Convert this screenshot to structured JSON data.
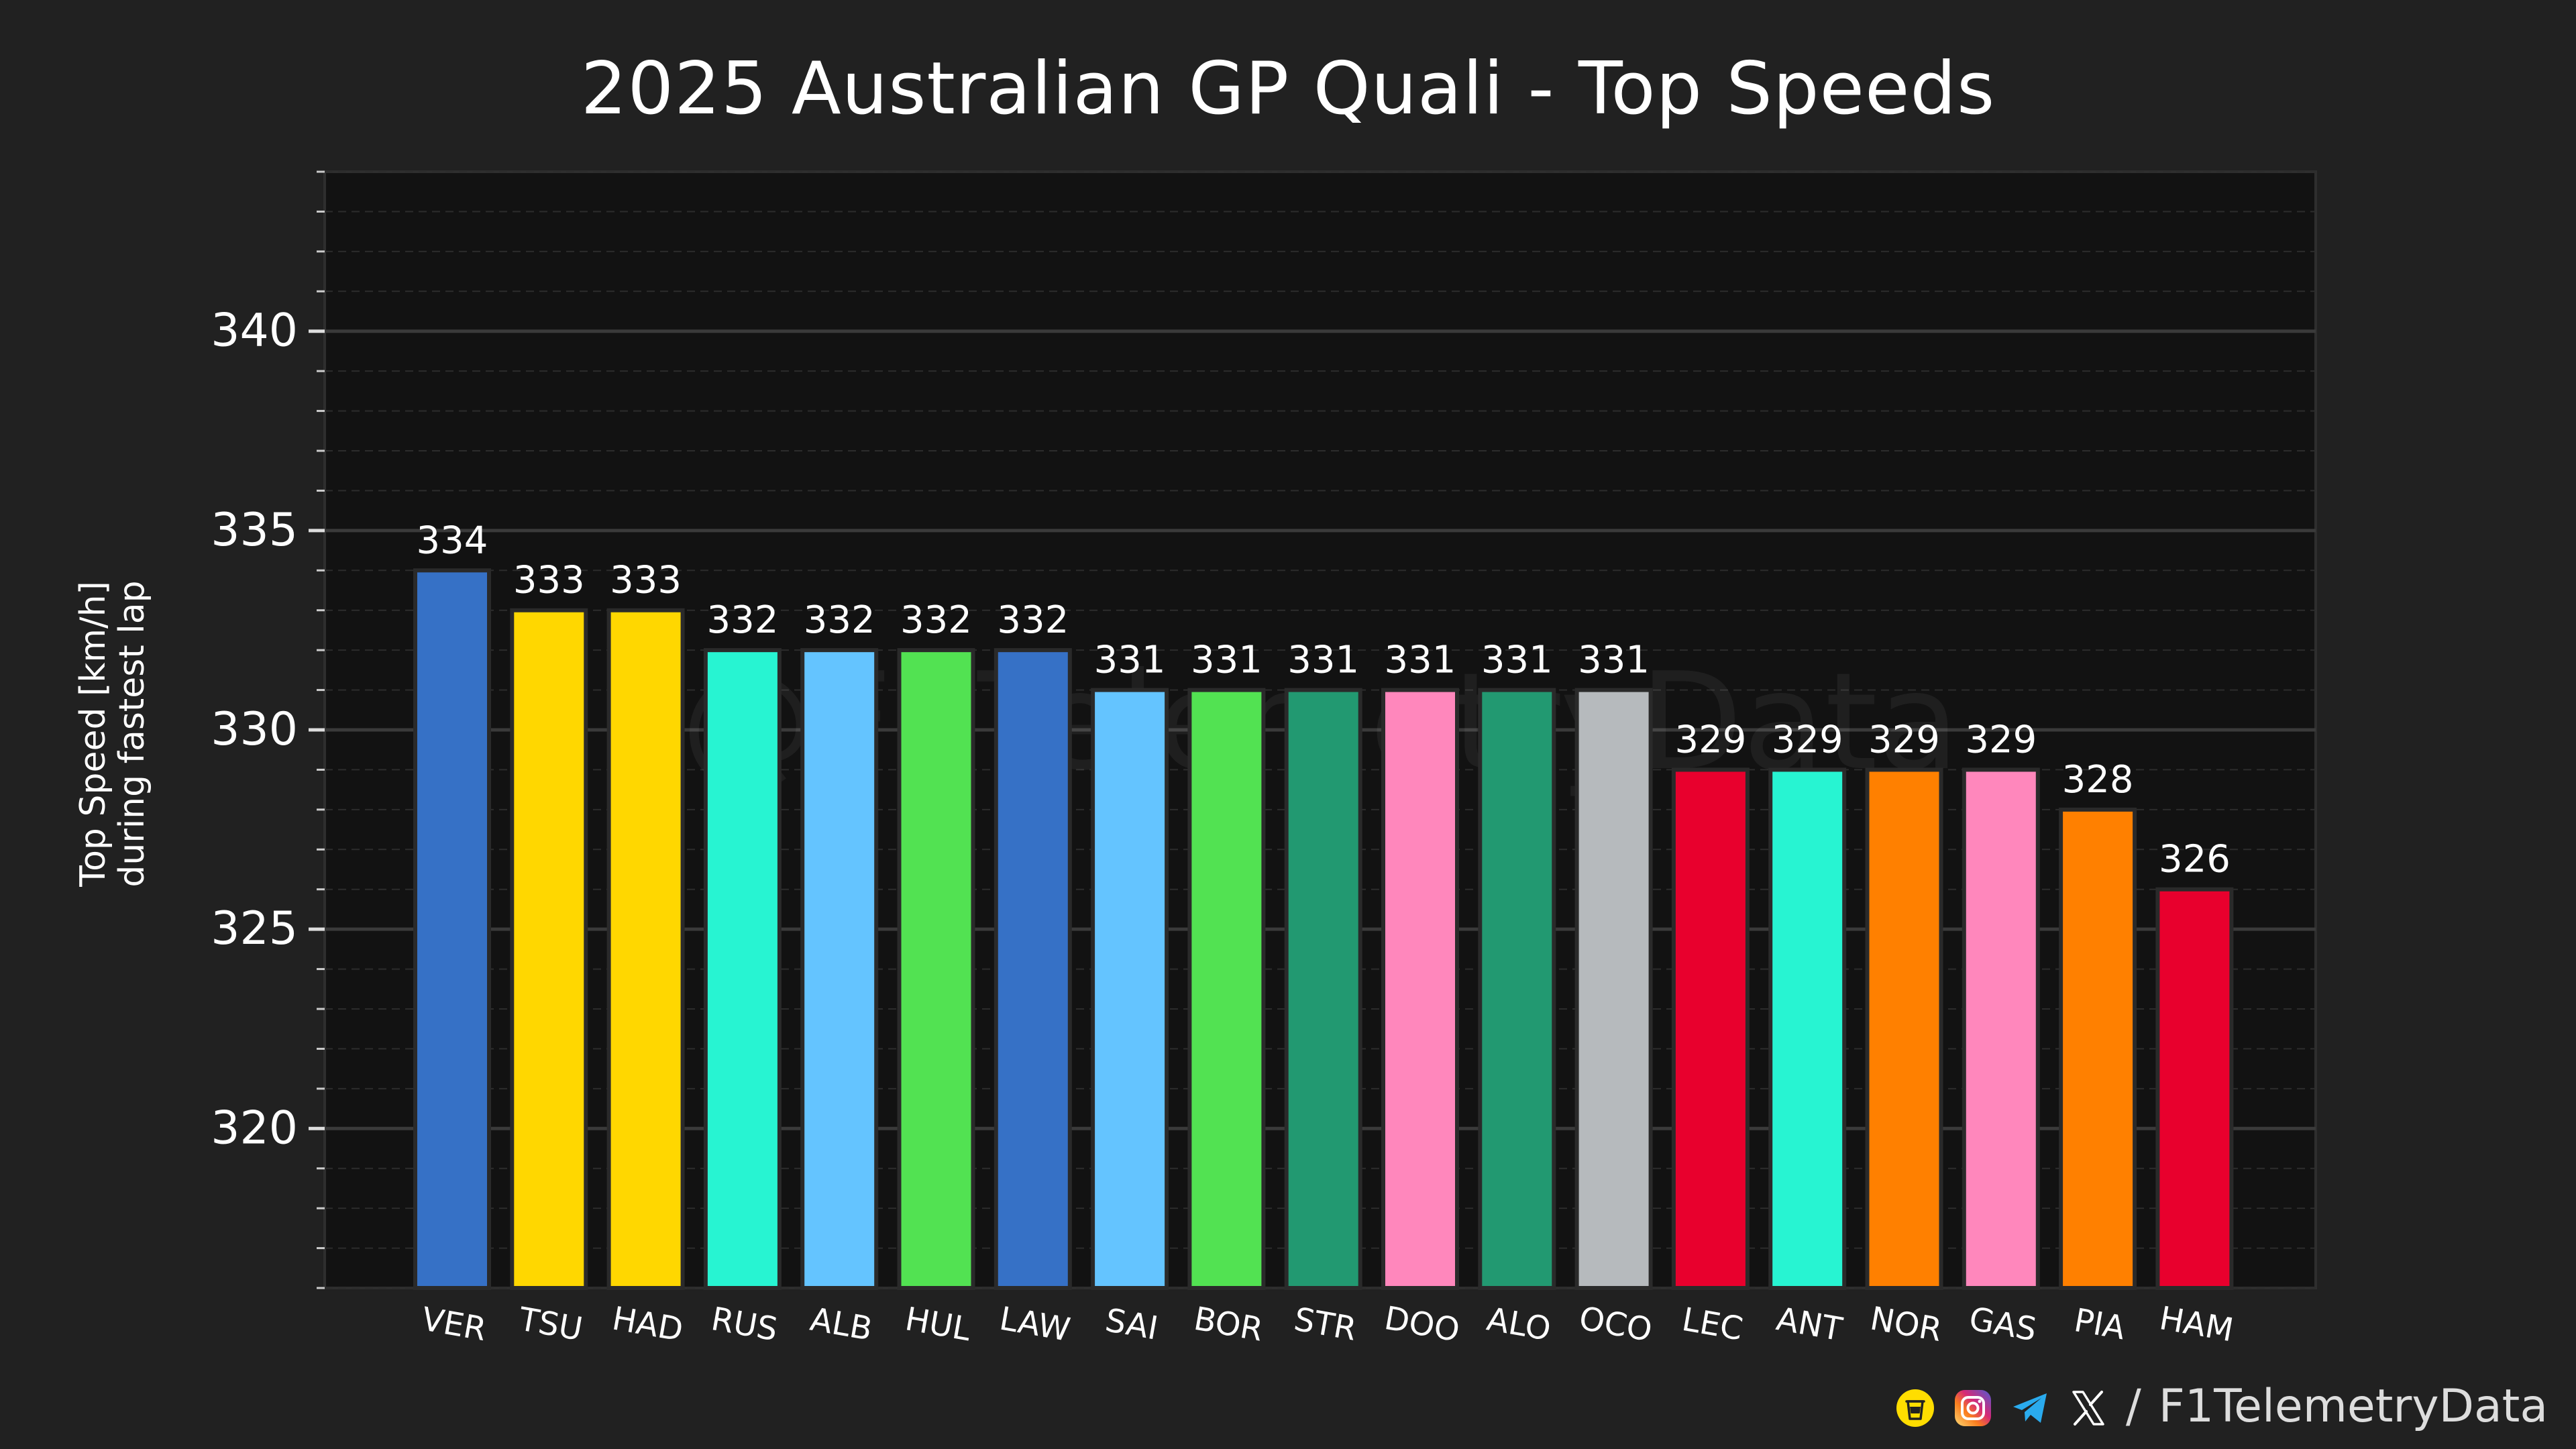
{
  "chart_data": {
    "type": "bar",
    "title": "2025 Australian GP Quali - Top Speeds",
    "xlabel": "",
    "ylabel_lines": [
      "Top Speed [km/h]",
      "during fastest lap"
    ],
    "ylim": [
      316,
      344
    ],
    "yticks": [
      320,
      325,
      330,
      335,
      340
    ],
    "grid": true,
    "categories": [
      "VER",
      "TSU",
      "HAD",
      "RUS",
      "ALB",
      "HUL",
      "LAW",
      "SAI",
      "BOR",
      "STR",
      "DOO",
      "ALO",
      "OCO",
      "LEC",
      "ANT",
      "NOR",
      "GAS",
      "PIA",
      "HAM"
    ],
    "values": [
      334,
      333,
      333,
      332,
      332,
      332,
      332,
      331,
      331,
      331,
      331,
      331,
      331,
      329,
      329,
      329,
      329,
      328,
      326
    ],
    "bar_colors": [
      "#3671C6",
      "#FFD700",
      "#FFD700",
      "#27F4D2",
      "#64C4FF",
      "#52E252",
      "#3671C6",
      "#64C4FF",
      "#52E252",
      "#229971",
      "#FF87BC",
      "#229971",
      "#B6BABD",
      "#E8002D",
      "#27F4D2",
      "#FF8000",
      "#FF87BC",
      "#FF8000",
      "#E8002D"
    ]
  },
  "watermark": "@F1TelemetryData",
  "footer": {
    "separator": "/",
    "handle": "F1TelemetryData",
    "icons": [
      "buymeacoffee-icon",
      "instagram-icon",
      "telegram-icon",
      "x-icon"
    ]
  },
  "colors": {
    "background": "#212121",
    "plot_background": "#121212",
    "grid_major": "#3a3a3a",
    "grid_minor": "#2c2c2c",
    "text": "#ffffff"
  }
}
